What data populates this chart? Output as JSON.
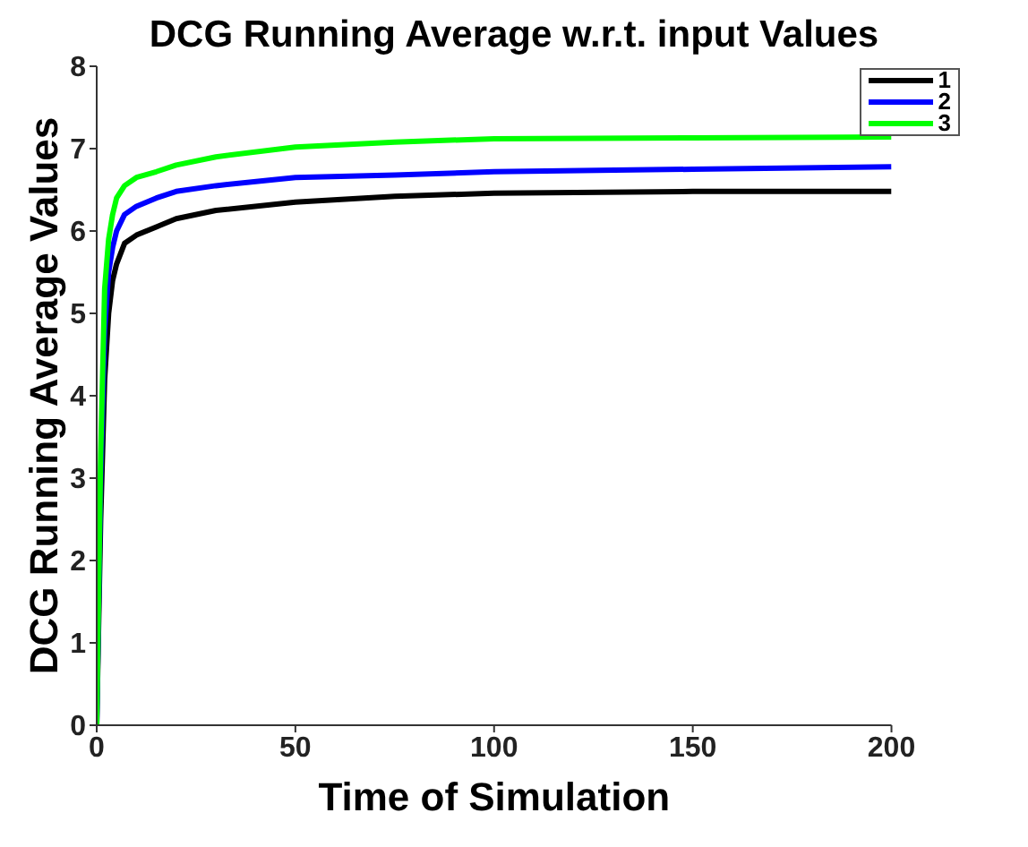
{
  "chart_data": {
    "type": "line",
    "title": "DCG Running Average w.r.t. input Values",
    "xlabel": "Time of Simulation",
    "ylabel": "DCG Running Average Values",
    "x": [
      0,
      1,
      2,
      3,
      4,
      5,
      7,
      10,
      15,
      20,
      30,
      50,
      75,
      100,
      150,
      200
    ],
    "series": [
      {
        "name": "1",
        "color": "#000000",
        "values": [
          0,
          2.5,
          4.2,
          5.0,
          5.4,
          5.6,
          5.85,
          5.95,
          6.05,
          6.15,
          6.25,
          6.35,
          6.42,
          6.46,
          6.48,
          6.48
        ]
      },
      {
        "name": "2",
        "color": "#0000ff",
        "values": [
          0,
          3,
          4.8,
          5.5,
          5.8,
          6.0,
          6.2,
          6.3,
          6.4,
          6.48,
          6.55,
          6.65,
          6.68,
          6.72,
          6.75,
          6.78
        ]
      },
      {
        "name": "3",
        "color": "#00ff00",
        "values": [
          0,
          3.3,
          5.3,
          5.9,
          6.2,
          6.4,
          6.55,
          6.65,
          6.72,
          6.8,
          6.9,
          7.02,
          7.08,
          7.12,
          7.13,
          7.14
        ]
      }
    ],
    "xlim": [
      0,
      200
    ],
    "xticks": [
      0,
      50,
      100,
      150,
      200
    ],
    "ylim": [
      0,
      8
    ],
    "yticks": [
      0,
      1,
      2,
      3,
      4,
      5,
      6,
      7,
      8
    ],
    "grid": false,
    "legend": "top right",
    "marker": "none",
    "line_style": "solid"
  }
}
